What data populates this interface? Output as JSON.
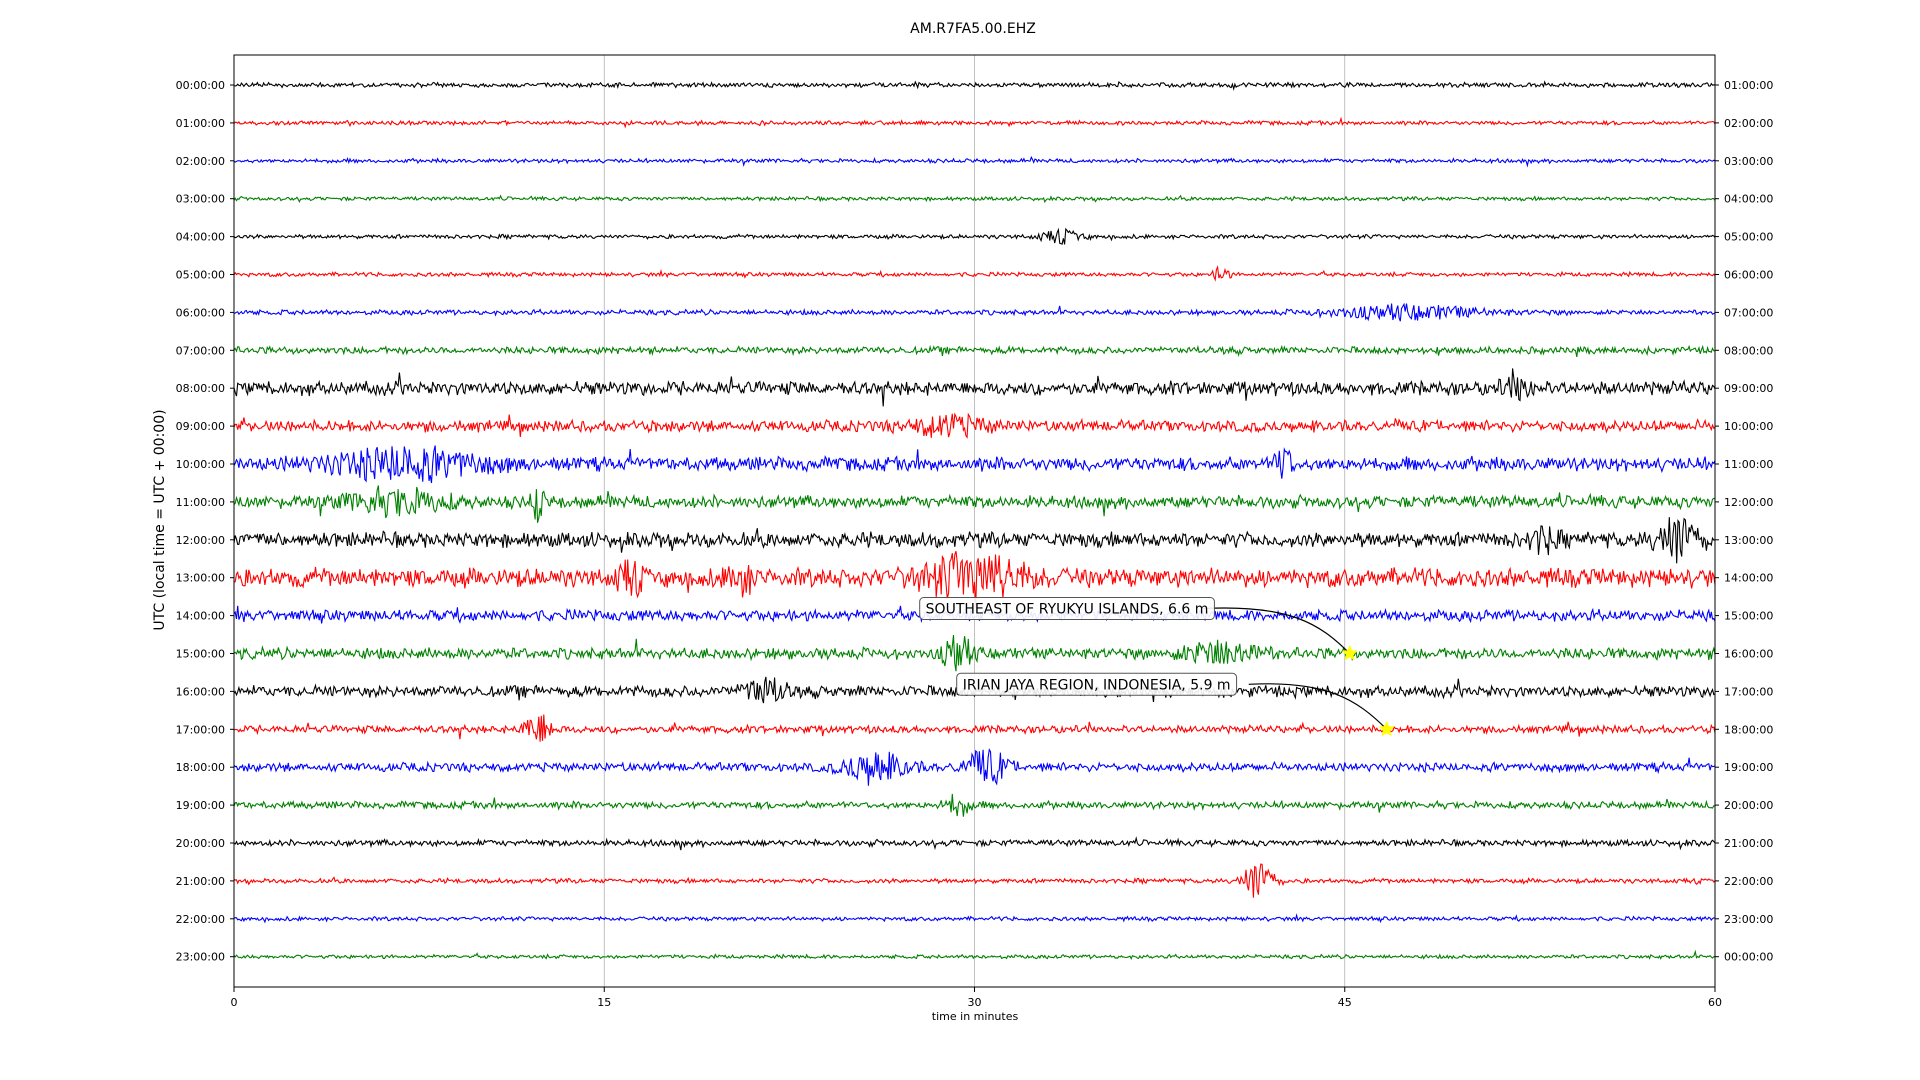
{
  "chart_data": {
    "type": "line",
    "title": "AM.R7FA5.00.EHZ",
    "xlabel": "time in minutes",
    "ylabel": "UTC (local time = UTC + 00:00)",
    "xlim": [
      0,
      60
    ],
    "x_ticks": [
      0,
      15,
      30,
      45,
      60
    ],
    "x_tick_labels": [
      "0",
      "15",
      "30",
      "45",
      "60"
    ],
    "grid": "vertical",
    "row_colors": [
      "#000000",
      "#ff0000",
      "#0000ff",
      "#008000"
    ],
    "left_labels": [
      "00:00:00",
      "01:00:00",
      "02:00:00",
      "03:00:00",
      "04:00:00",
      "05:00:00",
      "06:00:00",
      "07:00:00",
      "08:00:00",
      "09:00:00",
      "10:00:00",
      "11:00:00",
      "12:00:00",
      "13:00:00",
      "14:00:00",
      "15:00:00",
      "16:00:00",
      "17:00:00",
      "18:00:00",
      "19:00:00",
      "20:00:00",
      "21:00:00",
      "22:00:00",
      "23:00:00"
    ],
    "right_labels": [
      "01:00:00",
      "02:00:00",
      "03:00:00",
      "04:00:00",
      "05:00:00",
      "06:00:00",
      "07:00:00",
      "08:00:00",
      "09:00:00",
      "10:00:00",
      "11:00:00",
      "12:00:00",
      "13:00:00",
      "14:00:00",
      "15:00:00",
      "16:00:00",
      "17:00:00",
      "18:00:00",
      "19:00:00",
      "20:00:00",
      "21:00:00",
      "22:00:00",
      "23:00:00",
      "00:00:00"
    ],
    "row_noise": [
      0.18,
      0.16,
      0.16,
      0.15,
      0.16,
      0.16,
      0.2,
      0.28,
      0.55,
      0.45,
      0.55,
      0.5,
      0.6,
      0.75,
      0.45,
      0.45,
      0.45,
      0.3,
      0.35,
      0.28,
      0.25,
      0.18,
      0.16,
      0.15
    ],
    "bursts": [
      {
        "row": 4,
        "minute": 33.5,
        "amp": 0.6,
        "width": 0.8
      },
      {
        "row": 5,
        "minute": 40.0,
        "amp": 0.8,
        "width": 0.3
      },
      {
        "row": 6,
        "minute": 47.5,
        "amp": 0.6,
        "width": 3
      },
      {
        "row": 8,
        "minute": 52.0,
        "amp": 0.9,
        "width": 0.6
      },
      {
        "row": 9,
        "minute": 29.0,
        "amp": 0.8,
        "width": 1.5
      },
      {
        "row": 10,
        "minute": 7.0,
        "amp": 1.3,
        "width": 3
      },
      {
        "row": 10,
        "minute": 42.5,
        "amp": 1.8,
        "width": 0.3
      },
      {
        "row": 11,
        "minute": 12.3,
        "amp": 2.0,
        "width": 0.2
      },
      {
        "row": 11,
        "minute": 6.5,
        "amp": 1.0,
        "width": 2
      },
      {
        "row": 12,
        "minute": 58.5,
        "amp": 2.2,
        "width": 0.8
      },
      {
        "row": 12,
        "minute": 53.0,
        "amp": 1.0,
        "width": 0.6
      },
      {
        "row": 13,
        "minute": 30.0,
        "amp": 2.0,
        "width": 2
      },
      {
        "row": 13,
        "minute": 16.0,
        "amp": 1.2,
        "width": 0.5
      },
      {
        "row": 13,
        "minute": 20.5,
        "amp": 1.3,
        "width": 0.5
      },
      {
        "row": 15,
        "minute": 29.3,
        "amp": 1.8,
        "width": 0.5
      },
      {
        "row": 15,
        "minute": 40.0,
        "amp": 1.0,
        "width": 1.5
      },
      {
        "row": 16,
        "minute": 21.5,
        "amp": 1.2,
        "width": 0.8
      },
      {
        "row": 17,
        "minute": 12.3,
        "amp": 1.5,
        "width": 0.5
      },
      {
        "row": 18,
        "minute": 26.0,
        "amp": 1.4,
        "width": 1.2
      },
      {
        "row": 18,
        "minute": 30.5,
        "amp": 1.6,
        "width": 0.8
      },
      {
        "row": 19,
        "minute": 29.3,
        "amp": 1.0,
        "width": 0.5
      },
      {
        "row": 21,
        "minute": 41.5,
        "amp": 2.0,
        "width": 0.6
      }
    ],
    "annotations": [
      {
        "text": "SOUTHEAST OF RYUKYU ISLANDS, 6.6 m",
        "row": 15,
        "minute": 45.2
      },
      {
        "text": "IRIAN JAYA REGION, INDONESIA, 5.9 m",
        "row": 17,
        "minute": 46.7
      }
    ],
    "marker_color": "#ffff00"
  }
}
